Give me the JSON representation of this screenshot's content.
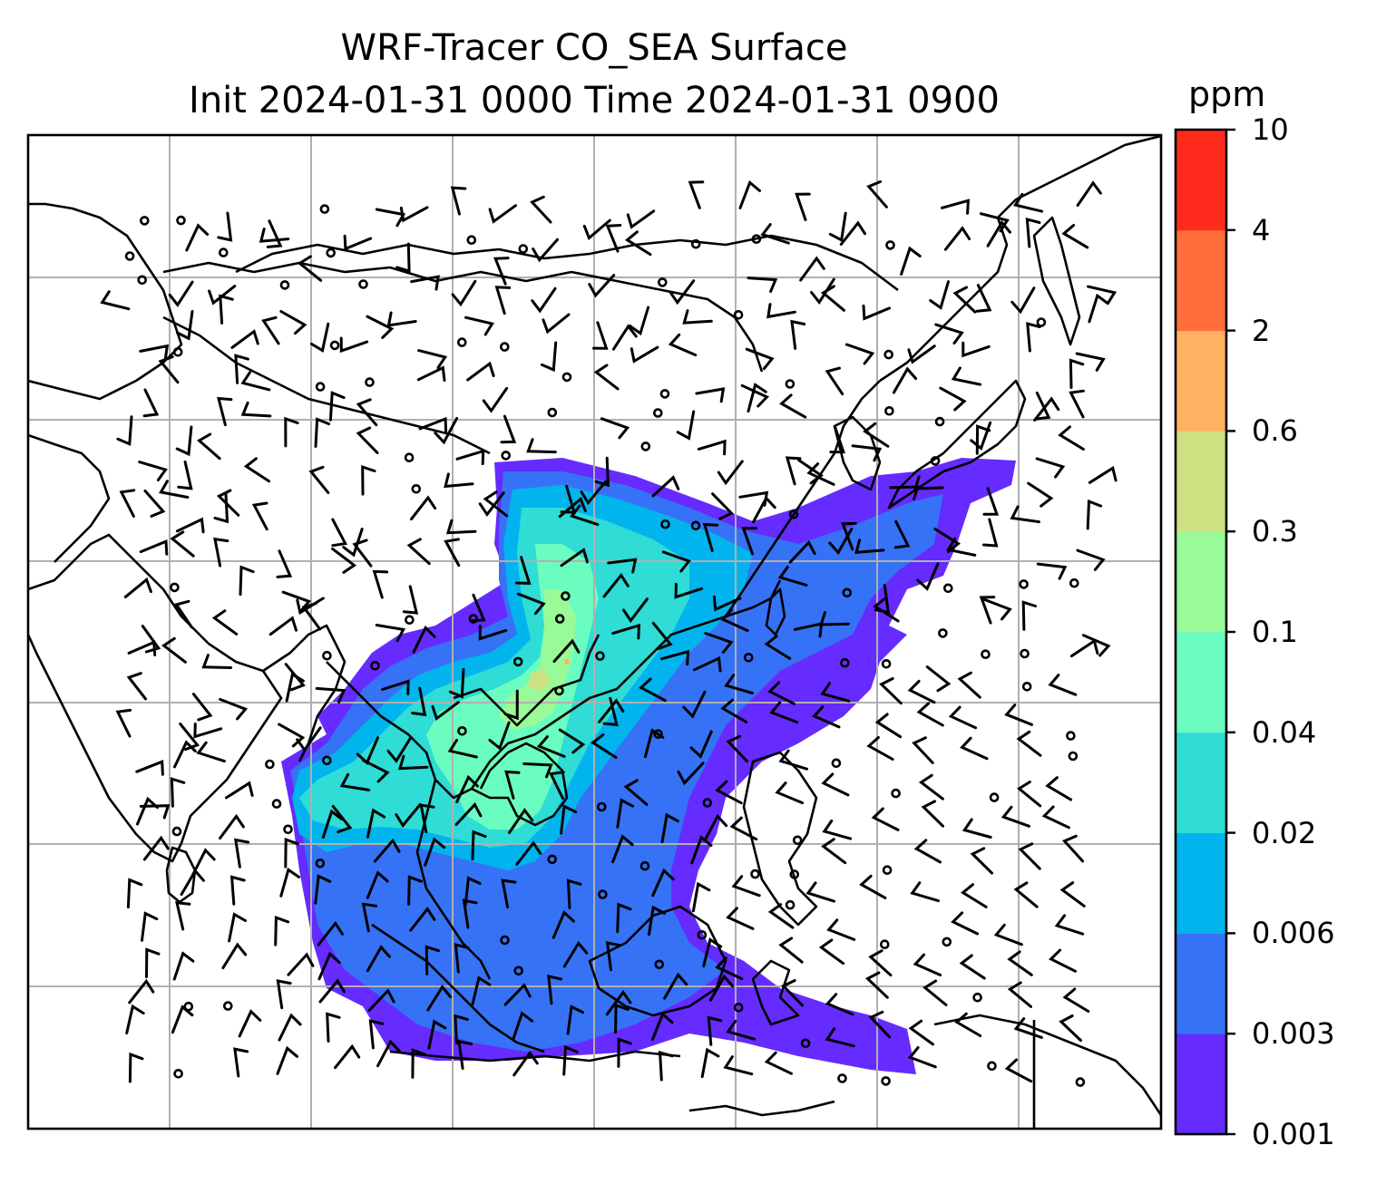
{
  "title": {
    "line1": "WRF-Tracer CO_SEA Surface",
    "line2": "Init 2024-01-31 0000 Time 2024-01-31 0900"
  },
  "colorbar": {
    "unit": "ppm",
    "levels": [
      "0.001",
      "0.003",
      "0.006",
      "0.02",
      "0.04",
      "0.1",
      "0.3",
      "0.6",
      "2",
      "4",
      "10"
    ],
    "colors": [
      "#652bff",
      "#3672f5",
      "#02b4ee",
      "#2fdcd6",
      "#6bfcbf",
      "#99fa98",
      "#cde183",
      "#feb160",
      "#ff6d3b",
      "#ff2c1d"
    ]
  },
  "map": {
    "grid_color": "#b0b0b0",
    "coastline_color": "#000000",
    "symbols": [
      "wind-barbs",
      "calm-circles"
    ]
  }
}
